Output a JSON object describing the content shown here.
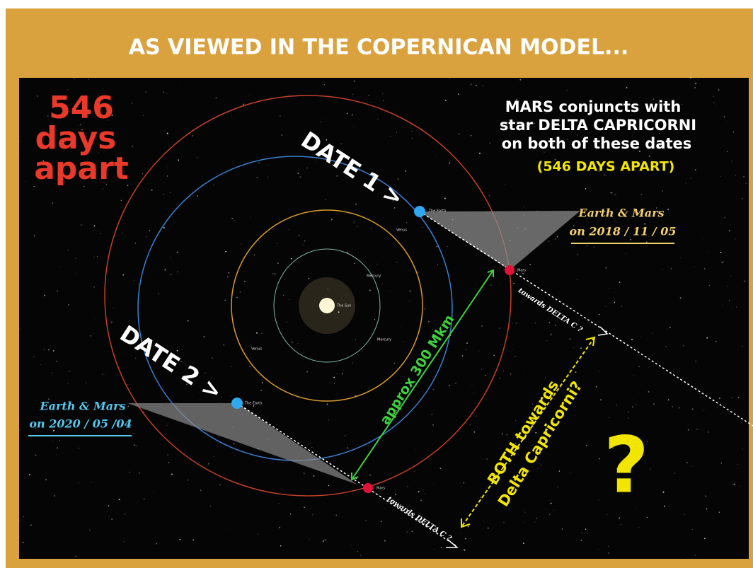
{
  "header": {
    "title": "AS VIEWED IN THE COPERNICAN MODEL..."
  },
  "days_note": {
    "lines": [
      "546",
      "days",
      "apart"
    ]
  },
  "conjunction_note": {
    "lines": [
      "MARS conjuncts with",
      "star DELTA CAPRICORNI",
      "on both of these dates"
    ],
    "highlight": "(546 DAYS APART)"
  },
  "date_1": {
    "label": "DATE 1 >",
    "caption": [
      "Earth & Mars",
      "on 2018 / 11 / 05"
    ],
    "direction": "towards DELTA C ?"
  },
  "date_2": {
    "label": "DATE 2 >",
    "caption": [
      "Earth & Mars",
      "on 2020 / 05 /04"
    ],
    "direction": "towards DELTA C ?"
  },
  "distance": "approx 300 Mkm",
  "both_note": [
    "BOTH towards",
    "Delta Capricorni?"
  ],
  "question": "?",
  "bodies": {
    "sun": "The Sun",
    "mercury": [
      "Mercury",
      "Mercury"
    ],
    "venus": [
      "Venus",
      "Venus"
    ],
    "earth": [
      "The Earth",
      "The Earth"
    ],
    "mars": [
      "Mars",
      "Mars"
    ]
  }
}
